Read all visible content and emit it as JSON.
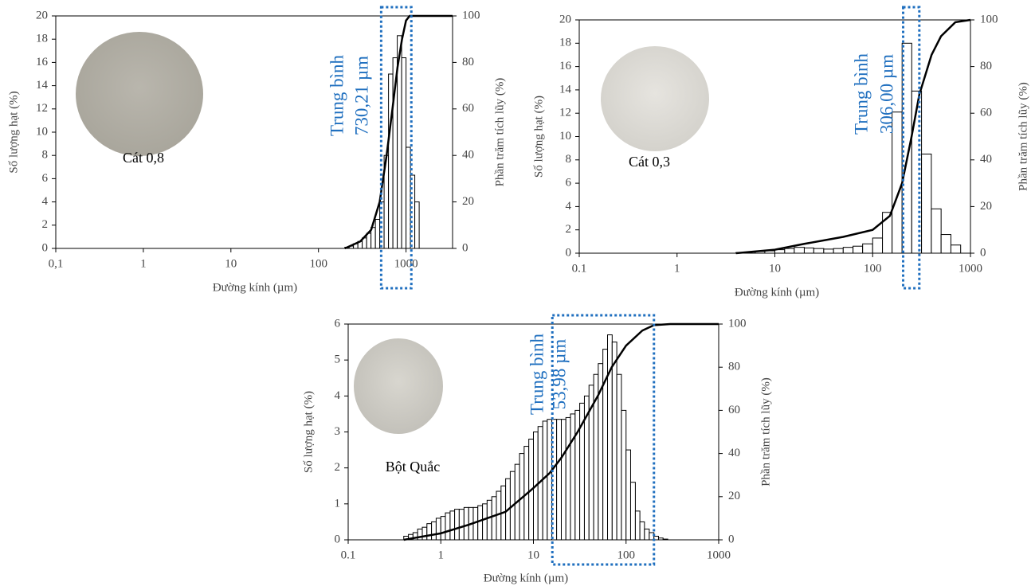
{
  "chart_data": [
    {
      "type": "histogram",
      "xlabel": "Đường kính (µm)",
      "ylabel": "Số lượng hạt (%)",
      "y2label": "Phần trăm tích lũy (%)",
      "log_x": true,
      "xlim": [
        0.1,
        3400
      ],
      "xticks": [
        {
          "value": 0.1,
          "label": "0,1"
        },
        1,
        10,
        100,
        1000
      ],
      "ylim": [
        0,
        20
      ],
      "yticks": [
        0,
        2,
        4,
        6,
        8,
        10,
        12,
        14,
        16,
        18,
        20
      ],
      "y2lim": [
        0,
        100
      ],
      "y2ticks": [
        0,
        20,
        40,
        60,
        80,
        100
      ],
      "bins": [
        200,
        224,
        251,
        282,
        316,
        355,
        398,
        447,
        501,
        562,
        631,
        708,
        794,
        891,
        1000,
        1122,
        1259,
        1413
      ],
      "values": [
        0.1,
        0.2,
        0.4,
        0.6,
        0.9,
        1.3,
        1.8,
        2.5,
        4,
        8,
        15,
        16.4,
        18.3,
        16.4,
        8.7,
        6.3,
        4.0
      ],
      "color": "#ffffff",
      "edge_color": "#000000",
      "cumulative": {
        "axis": "y2",
        "color": "#000000",
        "x": [
          200,
          300,
          400,
          500,
          600,
          700,
          800,
          900,
          1000,
          1100,
          3400
        ],
        "values": [
          0,
          3,
          8,
          20,
          40,
          60,
          78,
          90,
          98,
          100,
          100
        ]
      },
      "annotations": [
        "Trung bình",
        "730,21 µm"
      ],
      "annotation_color": "#1f6fbf",
      "highlight": {
        "range": [
          520,
          1150
        ],
        "color": "#1f6fbf"
      },
      "sample_label": "Cát 0,8"
    },
    {
      "type": "histogram",
      "xlabel": "Đường kính (µm)",
      "ylabel": "Số lượng hạt (%)",
      "y2label": "Phần trăm tích lũy (%)",
      "log_x": true,
      "xlim": [
        0.1,
        1000
      ],
      "xticks": [
        0.1,
        1,
        10,
        100,
        1000
      ],
      "ylim": [
        0,
        20
      ],
      "yticks": [
        0,
        2,
        4,
        6,
        8,
        10,
        12,
        14,
        16,
        18,
        20
      ],
      "y2lim": [
        0,
        100
      ],
      "y2ticks": [
        0,
        20,
        40,
        60,
        80,
        100
      ],
      "bins": [
        4,
        5,
        6.3,
        7.9,
        10,
        12.6,
        15.8,
        20,
        25,
        31.6,
        39.8,
        50,
        63,
        79,
        100,
        126,
        158,
        200,
        251,
        316,
        398,
        501,
        631,
        794
      ],
      "values": [
        0.05,
        0.1,
        0.15,
        0.2,
        0.3,
        0.4,
        0.5,
        0.45,
        0.4,
        0.35,
        0.4,
        0.5,
        0.6,
        0.8,
        1.3,
        3.5,
        12.1,
        18,
        13.9,
        8.5,
        3.8,
        1.6,
        0.7
      ],
      "color": "#ffffff",
      "edge_color": "#000000",
      "cumulative": {
        "axis": "y2",
        "color": "#000000",
        "x": [
          4,
          10,
          20,
          50,
          100,
          150,
          200,
          250,
          300,
          400,
          500,
          700,
          1000
        ],
        "values": [
          0,
          1.5,
          4,
          7,
          10,
          16,
          30,
          50,
          68,
          85,
          93,
          99,
          100
        ]
      },
      "annotations": [
        "Trung bình",
        "306,00 µm"
      ],
      "annotation_color": "#1f6fbf",
      "highlight": {
        "range": [
          205,
          300
        ],
        "color": "#1f6fbf"
      },
      "sample_label": "Cát 0,3"
    },
    {
      "type": "histogram",
      "xlabel": "Đường kính (µm)",
      "ylabel": "Số lượng hạt (%)",
      "y2label": "Phần trăm tích lũy (%)",
      "log_x": true,
      "xlim": [
        0.1,
        1000
      ],
      "xticks": [
        0.1,
        1,
        10,
        100,
        1000
      ],
      "ylim": [
        0,
        6
      ],
      "yticks": [
        0,
        1,
        2,
        3,
        4,
        5,
        6
      ],
      "y2lim": [
        0,
        100
      ],
      "y2ticks": [
        0,
        20,
        40,
        60,
        80,
        100
      ],
      "bins": [
        0.398,
        0.447,
        0.501,
        0.562,
        0.631,
        0.708,
        0.794,
        0.891,
        1,
        1.12,
        1.26,
        1.41,
        1.58,
        1.78,
        2.0,
        2.24,
        2.51,
        2.82,
        3.16,
        3.55,
        3.98,
        4.47,
        5.01,
        5.62,
        6.31,
        7.08,
        7.94,
        8.91,
        10,
        11.2,
        12.6,
        14.1,
        15.8,
        17.8,
        20.0,
        22.4,
        25.1,
        28.2,
        31.6,
        35.5,
        39.8,
        44.7,
        50.1,
        56.2,
        63.1,
        70.8,
        79.4,
        89.1,
        100,
        112,
        126,
        141,
        158,
        178,
        200,
        224,
        251,
        282
      ],
      "values": [
        0.1,
        0.15,
        0.2,
        0.3,
        0.35,
        0.45,
        0.5,
        0.6,
        0.65,
        0.75,
        0.8,
        0.85,
        0.85,
        0.9,
        0.9,
        0.9,
        0.95,
        1.0,
        1.1,
        1.2,
        1.35,
        1.5,
        1.7,
        1.9,
        2.1,
        2.4,
        2.6,
        2.8,
        3.0,
        3.15,
        3.3,
        3.35,
        3.35,
        3.35,
        3.35,
        3.4,
        3.5,
        3.6,
        3.8,
        4.0,
        4.3,
        4.6,
        4.9,
        5.3,
        5.7,
        5.5,
        4.6,
        3.6,
        2.5,
        1.6,
        0.8,
        0.5,
        0.3,
        0.2,
        0.1,
        0.05,
        0.02
      ],
      "color": "#ffffff",
      "edge_color": "#000000",
      "cumulative": {
        "axis": "y2",
        "color": "#000000",
        "x": [
          0.398,
          1,
          2,
          5,
          10,
          15,
          20,
          30,
          50,
          70,
          100,
          150,
          200,
          300,
          1000
        ],
        "values": [
          0,
          3,
          7,
          13,
          24,
          31,
          38,
          50,
          67,
          80,
          90,
          97,
          99.5,
          100,
          100
        ]
      },
      "annotations": [
        "Trung bình",
        "53,98 µm"
      ],
      "annotation_color": "#1f6fbf",
      "highlight": {
        "range": [
          16,
          200
        ],
        "color": "#1f6fbf"
      },
      "sample_label": "Bột Quắc"
    }
  ]
}
